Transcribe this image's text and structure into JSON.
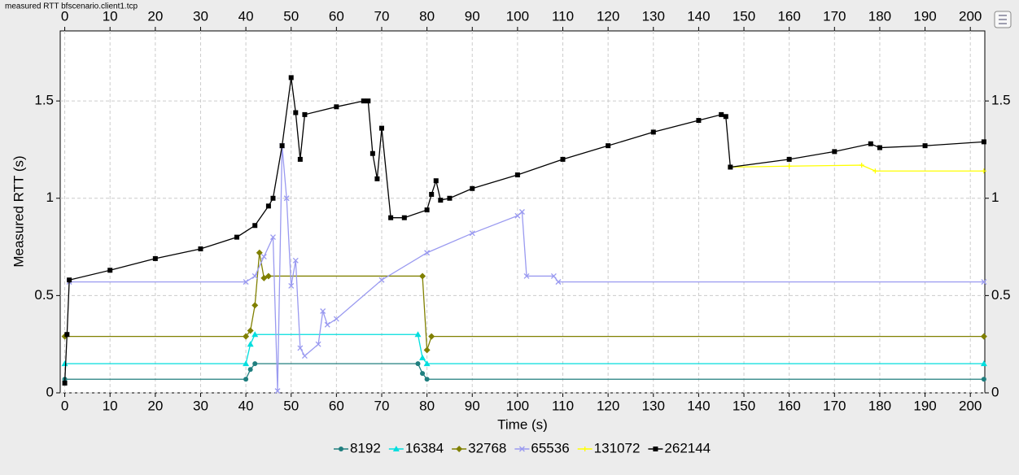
{
  "chart_data": {
    "type": "line",
    "title": "measured RTT bfscenario.client1.tcp",
    "x_label": "Time (s)",
    "y_label": "Measured RTT (s)",
    "xlim": [
      -1,
      203.2
    ],
    "ylim": [
      0,
      1.86
    ],
    "xticks": [
      0,
      10,
      20,
      30,
      40,
      50,
      60,
      70,
      80,
      90,
      100,
      110,
      120,
      130,
      140,
      150,
      160,
      170,
      180,
      190,
      200
    ],
    "yticks": [
      0,
      0.5,
      1.0,
      1.5
    ],
    "grid": true,
    "legend": "bottom",
    "series": [
      {
        "name": "8192",
        "color": "#207f7f",
        "marker": "circle",
        "x": [
          0,
          40,
          41,
          42,
          78,
          79,
          80,
          203
        ],
        "values": [
          0.07,
          0.07,
          0.12,
          0.15,
          0.15,
          0.1,
          0.07,
          0.07
        ]
      },
      {
        "name": "16384",
        "color": "#00dede",
        "marker": "triangle",
        "x": [
          0,
          40,
          41,
          42,
          78,
          79,
          80,
          203
        ],
        "values": [
          0.15,
          0.15,
          0.25,
          0.3,
          0.3,
          0.18,
          0.15,
          0.15
        ]
      },
      {
        "name": "32768",
        "color": "#808000",
        "marker": "diamond",
        "x": [
          0,
          40,
          41,
          42,
          43,
          44,
          45,
          79,
          80,
          81,
          203
        ],
        "values": [
          0.29,
          0.29,
          0.32,
          0.45,
          0.72,
          0.59,
          0.6,
          0.6,
          0.22,
          0.29,
          0.29
        ]
      },
      {
        "name": "65536",
        "color": "#9a9af0",
        "marker": "cross",
        "x": [
          1,
          40,
          42,
          44,
          46,
          47,
          48,
          49,
          50,
          51,
          52,
          53,
          56,
          57,
          58,
          60,
          70,
          80,
          90,
          100,
          101,
          102,
          108,
          109,
          203
        ],
        "values": [
          0.57,
          0.57,
          0.6,
          0.7,
          0.8,
          0.01,
          1.27,
          1.0,
          0.55,
          0.68,
          0.23,
          0.19,
          0.25,
          0.42,
          0.35,
          0.38,
          0.58,
          0.72,
          0.82,
          0.91,
          0.93,
          0.6,
          0.6,
          0.57,
          0.57
        ]
      },
      {
        "name": "131072",
        "color": "#ffff00",
        "marker": "plus",
        "x": [
          147,
          160,
          176,
          179,
          203
        ],
        "values": [
          1.16,
          1.165,
          1.17,
          1.14,
          1.14
        ]
      },
      {
        "name": "262144",
        "color": "#000000",
        "marker": "square",
        "x": [
          0,
          0.5,
          1,
          10,
          20,
          30,
          38,
          42,
          45,
          46,
          48,
          50,
          51,
          52,
          53,
          60,
          66,
          67,
          68,
          69,
          70,
          72,
          75,
          80,
          81,
          82,
          83,
          85,
          90,
          100,
          110,
          120,
          130,
          140,
          145,
          146,
          147,
          160,
          170,
          178,
          180,
          190,
          203
        ],
        "values": [
          0.05,
          0.3,
          0.58,
          0.63,
          0.69,
          0.74,
          0.8,
          0.86,
          0.96,
          1.0,
          1.27,
          1.62,
          1.44,
          1.2,
          1.43,
          1.47,
          1.5,
          1.5,
          1.23,
          1.1,
          1.36,
          0.9,
          0.9,
          0.94,
          1.02,
          1.09,
          0.99,
          1.0,
          1.05,
          1.12,
          1.2,
          1.27,
          1.34,
          1.4,
          1.43,
          1.42,
          1.16,
          1.2,
          1.24,
          1.28,
          1.26,
          1.27,
          1.29
        ]
      }
    ]
  }
}
